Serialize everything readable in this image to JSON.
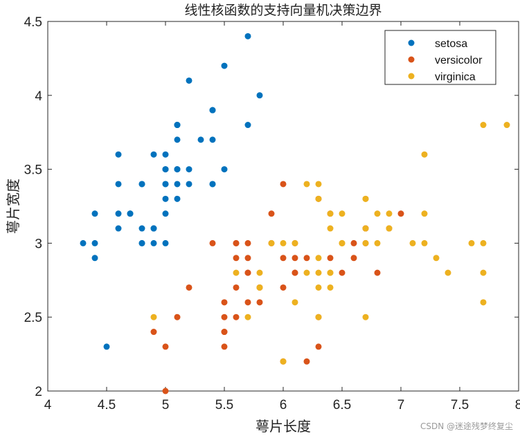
{
  "chart_data": {
    "type": "scatter",
    "title": "线性核函数的支持向量机决策边界",
    "xlabel": "萼片长度",
    "ylabel": "萼片宽度",
    "xlim": [
      4,
      8
    ],
    "ylim": [
      2,
      4.5
    ],
    "xticks": [
      "4",
      "4.5",
      "5",
      "5.5",
      "6",
      "6.5",
      "7",
      "7.5",
      "8"
    ],
    "yticks": [
      "2",
      "2.5",
      "3",
      "3.5",
      "4",
      "4.5"
    ],
    "grid": false,
    "legend_position": "top-right",
    "series": [
      {
        "name": "setosa",
        "color": "#0072BD",
        "points": [
          [
            5.1,
            3.5
          ],
          [
            4.9,
            3.0
          ],
          [
            4.7,
            3.2
          ],
          [
            4.6,
            3.1
          ],
          [
            5.0,
            3.6
          ],
          [
            5.4,
            3.9
          ],
          [
            4.6,
            3.4
          ],
          [
            5.0,
            3.4
          ],
          [
            4.4,
            2.9
          ],
          [
            4.9,
            3.1
          ],
          [
            5.4,
            3.7
          ],
          [
            4.8,
            3.4
          ],
          [
            4.8,
            3.0
          ],
          [
            4.3,
            3.0
          ],
          [
            5.8,
            4.0
          ],
          [
            5.7,
            4.4
          ],
          [
            5.4,
            3.9
          ],
          [
            5.1,
            3.5
          ],
          [
            5.7,
            3.8
          ],
          [
            5.1,
            3.8
          ],
          [
            5.4,
            3.4
          ],
          [
            5.1,
            3.7
          ],
          [
            4.6,
            3.6
          ],
          [
            5.1,
            3.3
          ],
          [
            4.8,
            3.4
          ],
          [
            5.0,
            3.0
          ],
          [
            5.0,
            3.4
          ],
          [
            5.2,
            3.5
          ],
          [
            5.2,
            3.4
          ],
          [
            4.7,
            3.2
          ],
          [
            4.8,
            3.1
          ],
          [
            5.4,
            3.4
          ],
          [
            5.2,
            4.1
          ],
          [
            5.5,
            4.2
          ],
          [
            4.9,
            3.1
          ],
          [
            5.0,
            3.2
          ],
          [
            5.5,
            3.5
          ],
          [
            4.9,
            3.6
          ],
          [
            4.4,
            3.0
          ],
          [
            5.1,
            3.4
          ],
          [
            5.0,
            3.5
          ],
          [
            4.5,
            2.3
          ],
          [
            4.4,
            3.2
          ],
          [
            5.0,
            3.5
          ],
          [
            5.1,
            3.8
          ],
          [
            4.8,
            3.0
          ],
          [
            5.1,
            3.8
          ],
          [
            4.6,
            3.2
          ],
          [
            5.3,
            3.7
          ],
          [
            5.0,
            3.3
          ]
        ]
      },
      {
        "name": "versicolor",
        "color": "#D95319",
        "points": [
          [
            7.0,
            3.2
          ],
          [
            6.4,
            3.2
          ],
          [
            6.9,
            3.1
          ],
          [
            5.5,
            2.3
          ],
          [
            6.5,
            2.8
          ],
          [
            5.7,
            2.8
          ],
          [
            6.3,
            3.3
          ],
          [
            4.9,
            2.4
          ],
          [
            6.6,
            2.9
          ],
          [
            5.2,
            2.7
          ],
          [
            5.0,
            2.0
          ],
          [
            5.9,
            3.0
          ],
          [
            6.0,
            2.2
          ],
          [
            6.1,
            2.9
          ],
          [
            5.6,
            2.9
          ],
          [
            6.7,
            3.1
          ],
          [
            5.6,
            3.0
          ],
          [
            5.8,
            2.7
          ],
          [
            6.2,
            2.2
          ],
          [
            5.6,
            2.5
          ],
          [
            5.9,
            3.2
          ],
          [
            6.1,
            2.8
          ],
          [
            6.3,
            2.5
          ],
          [
            6.1,
            2.8
          ],
          [
            6.4,
            2.9
          ],
          [
            6.6,
            3.0
          ],
          [
            6.8,
            2.8
          ],
          [
            6.7,
            3.0
          ],
          [
            6.0,
            2.9
          ],
          [
            5.7,
            2.6
          ],
          [
            5.5,
            2.4
          ],
          [
            5.5,
            2.4
          ],
          [
            5.8,
            2.7
          ],
          [
            6.0,
            2.7
          ],
          [
            5.4,
            3.0
          ],
          [
            6.0,
            3.4
          ],
          [
            6.7,
            3.1
          ],
          [
            6.3,
            2.3
          ],
          [
            5.6,
            3.0
          ],
          [
            5.5,
            2.5
          ],
          [
            5.5,
            2.6
          ],
          [
            6.1,
            3.0
          ],
          [
            5.8,
            2.6
          ],
          [
            5.0,
            2.3
          ],
          [
            5.6,
            2.7
          ],
          [
            5.7,
            3.0
          ],
          [
            5.7,
            2.9
          ],
          [
            6.2,
            2.9
          ],
          [
            5.1,
            2.5
          ],
          [
            5.7,
            2.8
          ]
        ]
      },
      {
        "name": "virginica",
        "color": "#EDB120",
        "points": [
          [
            6.3,
            3.3
          ],
          [
            5.8,
            2.7
          ],
          [
            7.1,
            3.0
          ],
          [
            6.3,
            2.9
          ],
          [
            6.5,
            3.0
          ],
          [
            7.6,
            3.0
          ],
          [
            4.9,
            2.5
          ],
          [
            7.3,
            2.9
          ],
          [
            6.7,
            2.5
          ],
          [
            7.2,
            3.6
          ],
          [
            6.5,
            3.2
          ],
          [
            6.4,
            2.7
          ],
          [
            6.8,
            3.0
          ],
          [
            5.7,
            2.5
          ],
          [
            5.8,
            2.8
          ],
          [
            6.4,
            3.2
          ],
          [
            6.5,
            3.0
          ],
          [
            7.7,
            3.8
          ],
          [
            7.7,
            2.6
          ],
          [
            6.0,
            2.2
          ],
          [
            6.9,
            3.2
          ],
          [
            5.6,
            2.8
          ],
          [
            7.7,
            2.8
          ],
          [
            6.3,
            2.7
          ],
          [
            6.7,
            3.3
          ],
          [
            7.2,
            3.2
          ],
          [
            6.2,
            2.8
          ],
          [
            6.1,
            3.0
          ],
          [
            6.4,
            2.8
          ],
          [
            7.2,
            3.0
          ],
          [
            7.4,
            2.8
          ],
          [
            7.9,
            3.8
          ],
          [
            6.4,
            2.8
          ],
          [
            6.3,
            2.8
          ],
          [
            6.1,
            2.6
          ],
          [
            7.7,
            3.0
          ],
          [
            6.3,
            3.4
          ],
          [
            6.4,
            3.1
          ],
          [
            6.0,
            3.0
          ],
          [
            6.9,
            3.1
          ],
          [
            6.7,
            3.1
          ],
          [
            6.9,
            3.1
          ],
          [
            5.8,
            2.7
          ],
          [
            6.8,
            3.2
          ],
          [
            6.7,
            3.3
          ],
          [
            6.7,
            3.0
          ],
          [
            6.3,
            2.5
          ],
          [
            6.5,
            3.0
          ],
          [
            6.2,
            3.4
          ],
          [
            5.9,
            3.0
          ]
        ]
      }
    ]
  },
  "watermark": "CSDN @迷途残梦终复尘"
}
